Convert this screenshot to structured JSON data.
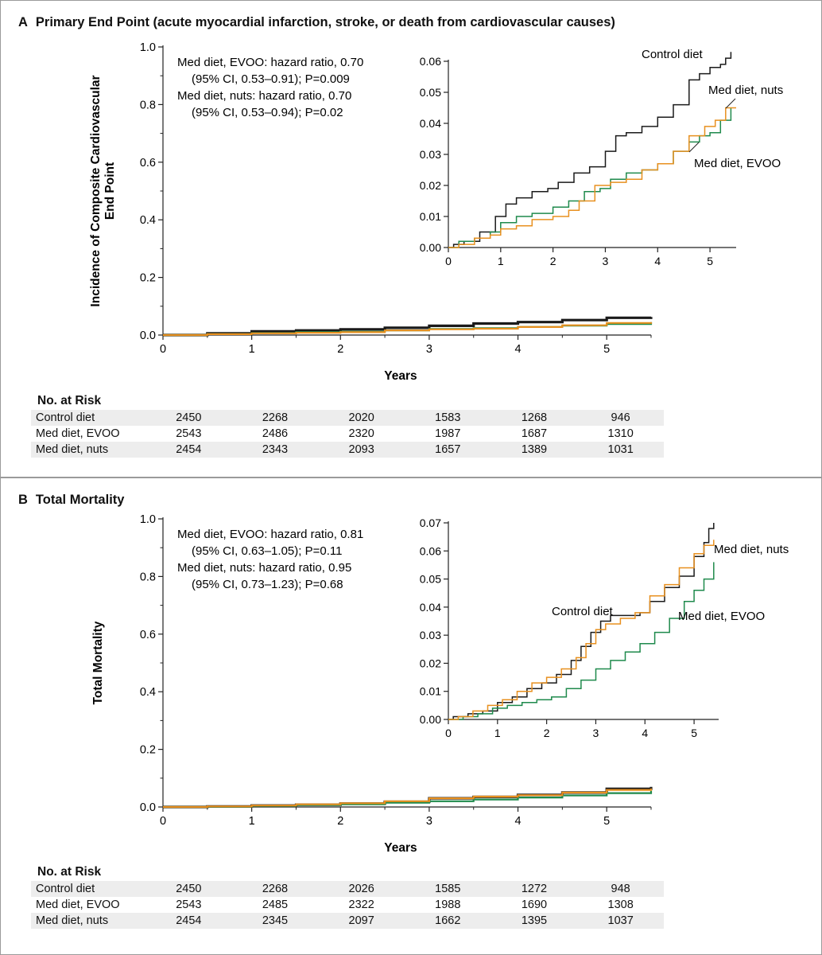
{
  "panels": [
    {
      "letter": "A",
      "title": "Primary End Point (acute myocardial infarction, stroke, or death from cardiovascular causes)",
      "annotation": [
        "Med diet, EVOO: hazard ratio, 0.70",
        "(95% CI, 0.53–0.91); P=0.009",
        "Med diet, nuts: hazard ratio, 0.70",
        "(95% CI, 0.53–0.94);  P=0.02"
      ],
      "risk_table": {
        "title": "No. at Risk",
        "rows": [
          {
            "label": "Control diet",
            "values": [
              "2450",
              "2268",
              "2020",
              "1583",
              "1268",
              "946"
            ]
          },
          {
            "label": "Med diet, EVOO",
            "values": [
              "2543",
              "2486",
              "2320",
              "1987",
              "1687",
              "1310"
            ]
          },
          {
            "label": "Med diet, nuts",
            "values": [
              "2454",
              "2343",
              "2093",
              "1657",
              "1389",
              "1031"
            ]
          }
        ]
      }
    },
    {
      "letter": "B",
      "title": "Total Mortality",
      "annotation": [
        "Med diet, EVOO: hazard ratio, 0.81",
        "(95% CI, 0.63–1.05); P=0.11",
        "Med diet, nuts: hazard ratio, 0.95",
        "(95% CI, 0.73–1.23);  P=0.68"
      ],
      "risk_table": {
        "title": "No. at Risk",
        "rows": [
          {
            "label": "Control diet",
            "values": [
              "2450",
              "2268",
              "2026",
              "1585",
              "1272",
              "948"
            ]
          },
          {
            "label": "Med diet, EVOO",
            "values": [
              "2543",
              "2485",
              "2322",
              "1988",
              "1690",
              "1308"
            ]
          },
          {
            "label": "Med diet, nuts",
            "values": [
              "2454",
              "2345",
              "2097",
              "1662",
              "1395",
              "1037"
            ]
          }
        ]
      }
    }
  ],
  "colors": {
    "control": "#1a1a1a",
    "evoo": "#1f8a4c",
    "nuts": "#e8901f"
  },
  "chart_data": [
    {
      "type": "line",
      "panel": "A",
      "role": "main",
      "xlabel": "Years",
      "ylabel": "Incidence of Composite Cardiovascular End Point",
      "xlim": [
        0,
        5.5
      ],
      "ylim": [
        0,
        1.0
      ],
      "xticks": [
        "0",
        "1",
        "2",
        "3",
        "4",
        "5"
      ],
      "yticks": [
        "0.0",
        "0.2",
        "0.4",
        "0.6",
        "0.8",
        "1.0"
      ],
      "series": [
        {
          "key": "control",
          "x": [
            0,
            0.5,
            1,
            1.5,
            2,
            2.5,
            3,
            3.5,
            4,
            4.5,
            5,
            5.5
          ],
          "values": [
            0,
            0.006,
            0.013,
            0.016,
            0.02,
            0.025,
            0.032,
            0.04,
            0.045,
            0.052,
            0.06,
            0.063
          ]
        },
        {
          "key": "evoo",
          "x": [
            0,
            0.5,
            1,
            1.5,
            2,
            2.5,
            3,
            3.5,
            4,
            4.5,
            5,
            5.5
          ],
          "values": [
            0,
            0.003,
            0.007,
            0.01,
            0.012,
            0.016,
            0.021,
            0.024,
            0.028,
            0.033,
            0.038,
            0.045
          ]
        },
        {
          "key": "nuts",
          "x": [
            0,
            0.5,
            1,
            1.5,
            2,
            2.5,
            3,
            3.5,
            4,
            4.5,
            5,
            5.5
          ],
          "values": [
            0,
            0.003,
            0.006,
            0.008,
            0.01,
            0.016,
            0.02,
            0.022,
            0.028,
            0.034,
            0.042,
            0.045
          ]
        }
      ]
    },
    {
      "type": "line",
      "panel": "A",
      "role": "inset",
      "xlim": [
        0,
        5.5
      ],
      "ylim": [
        0,
        0.06
      ],
      "xticks": [
        "0",
        "1",
        "2",
        "3",
        "4",
        "5"
      ],
      "yticks": [
        "0.00",
        "0.01",
        "0.02",
        "0.03",
        "0.04",
        "0.05",
        "0.06"
      ],
      "series": [
        {
          "key": "control",
          "name": "Control diet",
          "x": [
            0,
            0.1,
            0.3,
            0.6,
            0.9,
            1.1,
            1.3,
            1.6,
            1.9,
            2.1,
            2.4,
            2.7,
            3.0,
            3.2,
            3.4,
            3.7,
            4.0,
            4.3,
            4.6,
            4.8,
            5.0,
            5.2,
            5.3,
            5.4
          ],
          "values": [
            0,
            0.001,
            0.002,
            0.005,
            0.01,
            0.014,
            0.016,
            0.018,
            0.019,
            0.021,
            0.024,
            0.026,
            0.031,
            0.036,
            0.037,
            0.039,
            0.042,
            0.046,
            0.054,
            0.056,
            0.058,
            0.059,
            0.061,
            0.063
          ]
        },
        {
          "key": "evoo",
          "name": "Med diet, EVOO",
          "x": [
            0,
            0.2,
            0.5,
            0.8,
            1.0,
            1.3,
            1.6,
            2.0,
            2.3,
            2.6,
            2.9,
            3.1,
            3.4,
            3.7,
            4.0,
            4.3,
            4.6,
            4.8,
            5.0,
            5.2,
            5.4
          ],
          "values": [
            0,
            0.002,
            0.003,
            0.005,
            0.008,
            0.01,
            0.011,
            0.013,
            0.015,
            0.018,
            0.019,
            0.022,
            0.024,
            0.025,
            0.027,
            0.031,
            0.034,
            0.036,
            0.037,
            0.041,
            0.045
          ]
        },
        {
          "key": "nuts",
          "name": "Med diet, nuts",
          "x": [
            0,
            0.2,
            0.5,
            0.8,
            1.0,
            1.3,
            1.6,
            2.0,
            2.3,
            2.5,
            2.8,
            3.1,
            3.4,
            3.7,
            4.0,
            4.3,
            4.6,
            4.9,
            5.1,
            5.3,
            5.5
          ],
          "values": [
            0,
            0.001,
            0.003,
            0.004,
            0.006,
            0.007,
            0.009,
            0.01,
            0.012,
            0.015,
            0.02,
            0.021,
            0.022,
            0.025,
            0.027,
            0.031,
            0.036,
            0.039,
            0.041,
            0.045,
            0.045
          ]
        }
      ]
    },
    {
      "type": "line",
      "panel": "B",
      "role": "main",
      "xlabel": "Years",
      "ylabel": "Total Mortality",
      "xlim": [
        0,
        5.5
      ],
      "ylim": [
        0,
        1.0
      ],
      "xticks": [
        "0",
        "1",
        "2",
        "3",
        "4",
        "5"
      ],
      "yticks": [
        "0.0",
        "0.2",
        "0.4",
        "0.6",
        "0.8",
        "1.0"
      ],
      "series": [
        {
          "key": "control",
          "x": [
            0,
            0.5,
            1,
            1.5,
            2,
            2.5,
            3,
            3.5,
            4,
            4.5,
            5,
            5.5
          ],
          "values": [
            0,
            0.002,
            0.005,
            0.008,
            0.012,
            0.018,
            0.03,
            0.035,
            0.042,
            0.05,
            0.063,
            0.07
          ]
        },
        {
          "key": "evoo",
          "x": [
            0,
            0.5,
            1,
            1.5,
            2,
            2.5,
            3,
            3.5,
            4,
            4.5,
            5,
            5.5
          ],
          "values": [
            0,
            0.001,
            0.004,
            0.007,
            0.009,
            0.015,
            0.02,
            0.026,
            0.033,
            0.04,
            0.048,
            0.056
          ]
        },
        {
          "key": "nuts",
          "x": [
            0,
            0.5,
            1,
            1.5,
            2,
            2.5,
            3,
            3.5,
            4,
            4.5,
            5,
            5.5
          ],
          "values": [
            0,
            0.002,
            0.005,
            0.009,
            0.013,
            0.02,
            0.03,
            0.036,
            0.041,
            0.05,
            0.059,
            0.064
          ]
        }
      ]
    },
    {
      "type": "line",
      "panel": "B",
      "role": "inset",
      "xlim": [
        0,
        5.5
      ],
      "ylim": [
        0,
        0.07
      ],
      "xticks": [
        "0",
        "1",
        "2",
        "3",
        "4",
        "5"
      ],
      "yticks": [
        "0.00",
        "0.01",
        "0.02",
        "0.03",
        "0.04",
        "0.05",
        "0.06",
        "0.07"
      ],
      "series": [
        {
          "key": "control",
          "name": "Control diet",
          "x": [
            0,
            0.1,
            0.4,
            0.7,
            1.0,
            1.3,
            1.6,
            1.9,
            2.2,
            2.5,
            2.7,
            2.9,
            3.1,
            3.3,
            3.6,
            3.9,
            4.1,
            4.4,
            4.7,
            5.0,
            5.2,
            5.3,
            5.4
          ],
          "values": [
            0,
            0.001,
            0.002,
            0.003,
            0.006,
            0.008,
            0.011,
            0.013,
            0.016,
            0.021,
            0.026,
            0.031,
            0.035,
            0.037,
            0.037,
            0.038,
            0.042,
            0.047,
            0.051,
            0.058,
            0.063,
            0.068,
            0.07
          ]
        },
        {
          "key": "evoo",
          "name": "Med diet, EVOO",
          "x": [
            0,
            0.3,
            0.6,
            0.9,
            1.2,
            1.5,
            1.8,
            2.1,
            2.4,
            2.7,
            3.0,
            3.3,
            3.6,
            3.9,
            4.2,
            4.5,
            4.8,
            5.0,
            5.2,
            5.4
          ],
          "values": [
            0,
            0.001,
            0.002,
            0.004,
            0.005,
            0.006,
            0.007,
            0.008,
            0.011,
            0.014,
            0.018,
            0.021,
            0.024,
            0.027,
            0.031,
            0.036,
            0.042,
            0.046,
            0.05,
            0.056
          ]
        },
        {
          "key": "nuts",
          "name": "Med diet, nuts",
          "x": [
            0,
            0.2,
            0.5,
            0.8,
            1.1,
            1.4,
            1.7,
            2.0,
            2.3,
            2.6,
            2.8,
            3.0,
            3.2,
            3.5,
            3.8,
            4.1,
            4.4,
            4.7,
            5.0,
            5.2,
            5.4
          ],
          "values": [
            0,
            0.001,
            0.003,
            0.005,
            0.007,
            0.01,
            0.013,
            0.015,
            0.018,
            0.022,
            0.027,
            0.032,
            0.034,
            0.036,
            0.038,
            0.044,
            0.048,
            0.054,
            0.059,
            0.062,
            0.064
          ]
        }
      ]
    }
  ]
}
